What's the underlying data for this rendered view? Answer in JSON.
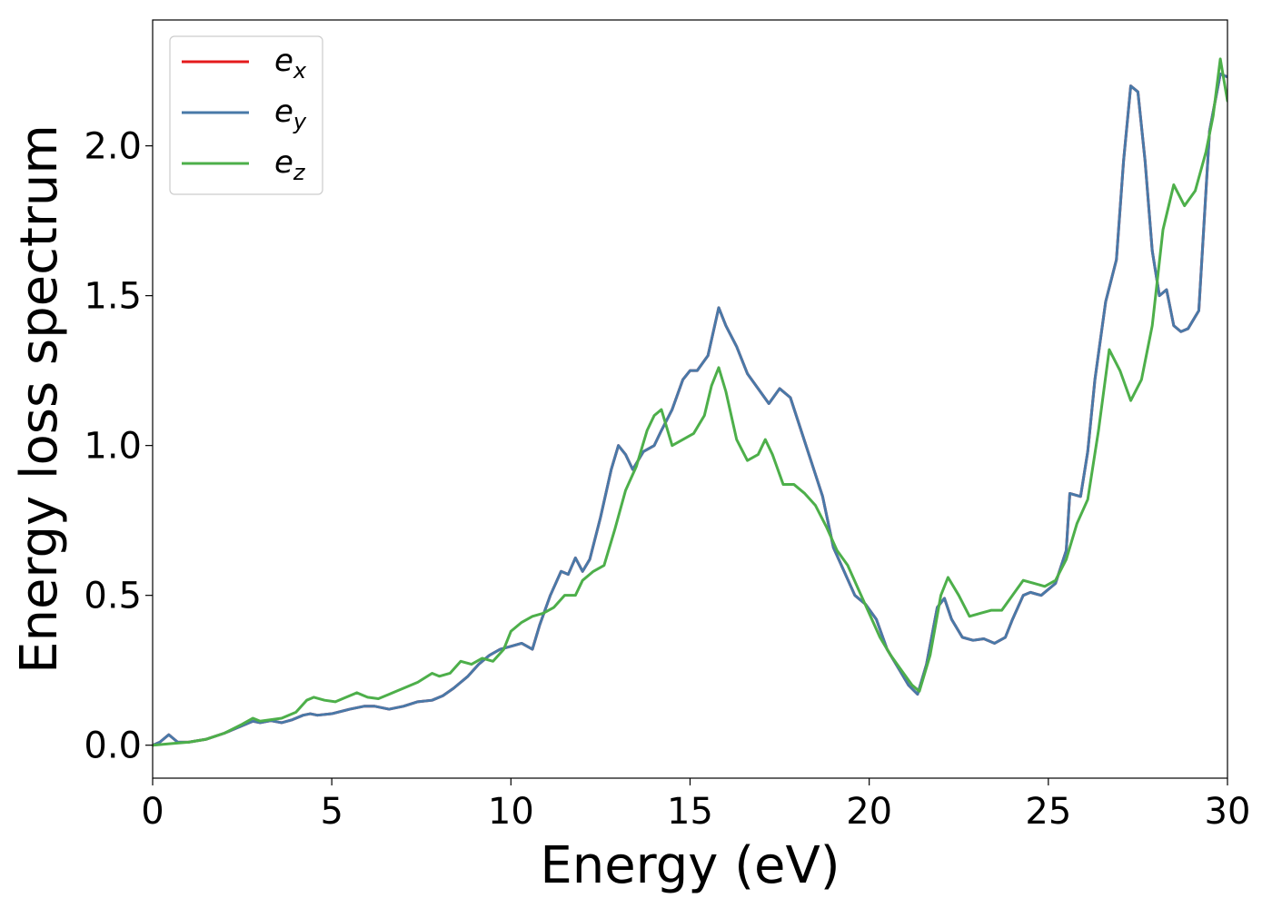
{
  "chart_data": {
    "type": "line",
    "title": "",
    "xlabel": "Energy (eV)",
    "ylabel": "Energy loss spectrum",
    "xlim": [
      0,
      30
    ],
    "ylim": [
      -0.11,
      2.42
    ],
    "xticks": [
      0,
      5,
      10,
      15,
      20,
      25,
      30
    ],
    "xtick_labels": [
      "0",
      "5",
      "10",
      "15",
      "20",
      "25",
      "30"
    ],
    "yticks": [
      0.0,
      0.5,
      1.0,
      1.5,
      2.0
    ],
    "ytick_labels": [
      "0.0",
      "0.5",
      "1.0",
      "1.5",
      "2.0"
    ],
    "grid": false,
    "legend_position": "top-left",
    "series": [
      {
        "name": "e",
        "subscript": "x",
        "color": "#e41a1c",
        "x": [
          0,
          0.2,
          0.45,
          0.7,
          1.0,
          1.5,
          2.0,
          2.5,
          2.8,
          3.0,
          3.3,
          3.6,
          3.9,
          4.2,
          4.4,
          4.6,
          5.0,
          5.5,
          5.9,
          6.2,
          6.6,
          7.0,
          7.4,
          7.8,
          8.1,
          8.4,
          8.8,
          9.1,
          9.4,
          9.7,
          10.0,
          10.3,
          10.6,
          10.8,
          11.1,
          11.4,
          11.6,
          11.8,
          12.0,
          12.2,
          12.5,
          12.8,
          13.0,
          13.2,
          13.4,
          13.7,
          14.0,
          14.2,
          14.5,
          14.8,
          15.0,
          15.2,
          15.5,
          15.8,
          16.0,
          16.3,
          16.6,
          16.9,
          17.2,
          17.5,
          17.8,
          18.1,
          18.4,
          18.7,
          19.0,
          19.3,
          19.6,
          19.9,
          20.2,
          20.5,
          20.8,
          21.1,
          21.35,
          21.6,
          21.9,
          22.1,
          22.3,
          22.6,
          22.9,
          23.2,
          23.5,
          23.8,
          24.0,
          24.3,
          24.5,
          24.8,
          25.2,
          25.5,
          25.6,
          25.9,
          26.1,
          26.3,
          26.6,
          26.9,
          27.1,
          27.3,
          27.5,
          27.7,
          27.9,
          28.1,
          28.3,
          28.5,
          28.7,
          28.9,
          29.2,
          29.5,
          29.8,
          30.0
        ],
        "y": [
          0.0,
          0.01,
          0.035,
          0.01,
          0.01,
          0.02,
          0.04,
          0.065,
          0.08,
          0.075,
          0.082,
          0.075,
          0.085,
          0.1,
          0.105,
          0.1,
          0.105,
          0.12,
          0.13,
          0.13,
          0.12,
          0.13,
          0.145,
          0.15,
          0.165,
          0.19,
          0.23,
          0.27,
          0.3,
          0.32,
          0.33,
          0.34,
          0.32,
          0.4,
          0.5,
          0.58,
          0.57,
          0.625,
          0.58,
          0.62,
          0.76,
          0.92,
          1.0,
          0.97,
          0.92,
          0.98,
          1.0,
          1.05,
          1.12,
          1.22,
          1.25,
          1.25,
          1.3,
          1.46,
          1.4,
          1.33,
          1.24,
          1.19,
          1.14,
          1.19,
          1.16,
          1.05,
          0.94,
          0.83,
          0.66,
          0.58,
          0.5,
          0.47,
          0.42,
          0.32,
          0.26,
          0.2,
          0.17,
          0.27,
          0.46,
          0.49,
          0.42,
          0.36,
          0.35,
          0.355,
          0.34,
          0.36,
          0.42,
          0.5,
          0.51,
          0.5,
          0.54,
          0.65,
          0.84,
          0.83,
          0.98,
          1.22,
          1.48,
          1.62,
          1.95,
          2.2,
          2.18,
          1.95,
          1.65,
          1.5,
          1.52,
          1.4,
          1.38,
          1.39,
          1.45,
          2.05,
          2.24,
          2.23
        ],
        "note": "overlaps e_y"
      },
      {
        "name": "e",
        "subscript": "y",
        "color": "#4979a8",
        "x": [
          0,
          0.2,
          0.45,
          0.7,
          1.0,
          1.5,
          2.0,
          2.5,
          2.8,
          3.0,
          3.3,
          3.6,
          3.9,
          4.2,
          4.4,
          4.6,
          5.0,
          5.5,
          5.9,
          6.2,
          6.6,
          7.0,
          7.4,
          7.8,
          8.1,
          8.4,
          8.8,
          9.1,
          9.4,
          9.7,
          10.0,
          10.3,
          10.6,
          10.8,
          11.1,
          11.4,
          11.6,
          11.8,
          12.0,
          12.2,
          12.5,
          12.8,
          13.0,
          13.2,
          13.4,
          13.7,
          14.0,
          14.2,
          14.5,
          14.8,
          15.0,
          15.2,
          15.5,
          15.8,
          16.0,
          16.3,
          16.6,
          16.9,
          17.2,
          17.5,
          17.8,
          18.1,
          18.4,
          18.7,
          19.0,
          19.3,
          19.6,
          19.9,
          20.2,
          20.5,
          20.8,
          21.1,
          21.35,
          21.6,
          21.9,
          22.1,
          22.3,
          22.6,
          22.9,
          23.2,
          23.5,
          23.8,
          24.0,
          24.3,
          24.5,
          24.8,
          25.2,
          25.5,
          25.6,
          25.9,
          26.1,
          26.3,
          26.6,
          26.9,
          27.1,
          27.3,
          27.5,
          27.7,
          27.9,
          28.1,
          28.3,
          28.5,
          28.7,
          28.9,
          29.2,
          29.5,
          29.8,
          30.0
        ],
        "y": [
          0.0,
          0.01,
          0.035,
          0.01,
          0.01,
          0.02,
          0.04,
          0.065,
          0.08,
          0.075,
          0.082,
          0.075,
          0.085,
          0.1,
          0.105,
          0.1,
          0.105,
          0.12,
          0.13,
          0.13,
          0.12,
          0.13,
          0.145,
          0.15,
          0.165,
          0.19,
          0.23,
          0.27,
          0.3,
          0.32,
          0.33,
          0.34,
          0.32,
          0.4,
          0.5,
          0.58,
          0.57,
          0.625,
          0.58,
          0.62,
          0.76,
          0.92,
          1.0,
          0.97,
          0.92,
          0.98,
          1.0,
          1.05,
          1.12,
          1.22,
          1.25,
          1.25,
          1.3,
          1.46,
          1.4,
          1.33,
          1.24,
          1.19,
          1.14,
          1.19,
          1.16,
          1.05,
          0.94,
          0.83,
          0.66,
          0.58,
          0.5,
          0.47,
          0.42,
          0.32,
          0.26,
          0.2,
          0.17,
          0.27,
          0.46,
          0.49,
          0.42,
          0.36,
          0.35,
          0.355,
          0.34,
          0.36,
          0.42,
          0.5,
          0.51,
          0.5,
          0.54,
          0.65,
          0.84,
          0.83,
          0.98,
          1.22,
          1.48,
          1.62,
          1.95,
          2.2,
          2.18,
          1.95,
          1.65,
          1.5,
          1.52,
          1.4,
          1.38,
          1.39,
          1.45,
          2.05,
          2.24,
          2.23
        ]
      },
      {
        "name": "e",
        "subscript": "z",
        "color": "#4daf4a",
        "x": [
          0,
          0.5,
          1.0,
          1.5,
          2.0,
          2.5,
          2.8,
          3.0,
          3.3,
          3.6,
          4.0,
          4.3,
          4.5,
          4.8,
          5.1,
          5.4,
          5.7,
          6.0,
          6.3,
          6.6,
          7.0,
          7.4,
          7.8,
          8.0,
          8.3,
          8.6,
          8.9,
          9.2,
          9.5,
          9.8,
          10.0,
          10.3,
          10.6,
          10.9,
          11.2,
          11.5,
          11.8,
          12.0,
          12.3,
          12.6,
          12.9,
          13.2,
          13.5,
          13.8,
          14.0,
          14.2,
          14.5,
          14.8,
          15.1,
          15.4,
          15.6,
          15.8,
          16.0,
          16.3,
          16.6,
          16.9,
          17.1,
          17.3,
          17.6,
          17.9,
          18.2,
          18.5,
          18.8,
          19.1,
          19.4,
          19.7,
          20.0,
          20.3,
          20.6,
          20.9,
          21.2,
          21.4,
          21.7,
          22.0,
          22.2,
          22.5,
          22.8,
          23.1,
          23.4,
          23.7,
          24.0,
          24.3,
          24.6,
          24.9,
          25.2,
          25.5,
          25.8,
          26.1,
          26.4,
          26.7,
          27.0,
          27.3,
          27.6,
          27.9,
          28.2,
          28.5,
          28.8,
          29.1,
          29.4,
          29.6,
          29.8,
          30.0
        ],
        "y": [
          0.0,
          0.005,
          0.01,
          0.02,
          0.04,
          0.07,
          0.09,
          0.08,
          0.085,
          0.09,
          0.11,
          0.15,
          0.16,
          0.15,
          0.145,
          0.16,
          0.175,
          0.16,
          0.155,
          0.17,
          0.19,
          0.21,
          0.24,
          0.23,
          0.24,
          0.28,
          0.27,
          0.29,
          0.28,
          0.32,
          0.38,
          0.41,
          0.43,
          0.44,
          0.46,
          0.5,
          0.5,
          0.55,
          0.58,
          0.6,
          0.72,
          0.85,
          0.93,
          1.05,
          1.1,
          1.12,
          1.0,
          1.02,
          1.04,
          1.1,
          1.2,
          1.26,
          1.18,
          1.02,
          0.95,
          0.97,
          1.02,
          0.97,
          0.87,
          0.87,
          0.84,
          0.8,
          0.73,
          0.65,
          0.6,
          0.52,
          0.44,
          0.36,
          0.3,
          0.25,
          0.2,
          0.18,
          0.3,
          0.5,
          0.56,
          0.5,
          0.43,
          0.44,
          0.45,
          0.45,
          0.5,
          0.55,
          0.54,
          0.53,
          0.55,
          0.62,
          0.74,
          0.82,
          1.05,
          1.32,
          1.25,
          1.15,
          1.22,
          1.4,
          1.72,
          1.87,
          1.8,
          1.85,
          1.98,
          2.1,
          2.29,
          2.15
        ]
      }
    ]
  }
}
